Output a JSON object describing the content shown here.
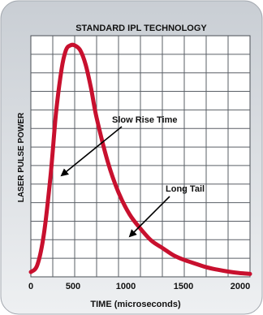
{
  "chart_data": {
    "type": "line",
    "title": "STANDARD IPL TECHNOLOGY",
    "xlabel": "TIME (microseconds)",
    "ylabel": "LASER PULSE POWER",
    "xlim": [
      0,
      2000
    ],
    "x_ticks": [
      0,
      500,
      1000,
      1500,
      2000
    ],
    "x_tick_labels": [
      "0",
      "500",
      "1000",
      "1500",
      "2000"
    ],
    "grid": true,
    "series": [
      {
        "color": "#c8102e",
        "x": [
          0,
          60,
          120,
          180,
          230,
          280,
          320,
          360,
          400,
          450,
          500,
          550,
          600,
          700,
          800,
          900,
          1000,
          1100,
          1200,
          1300,
          1400,
          1500,
          1600,
          1700,
          1800,
          1900,
          2000
        ],
        "y": [
          0.02,
          0.05,
          0.18,
          0.42,
          0.68,
          0.86,
          0.94,
          0.96,
          0.96,
          0.94,
          0.88,
          0.78,
          0.66,
          0.48,
          0.35,
          0.26,
          0.2,
          0.15,
          0.12,
          0.09,
          0.07,
          0.055,
          0.04,
          0.03,
          0.022,
          0.016,
          0.012
        ]
      }
    ],
    "annotations": [
      {
        "text": "Slow Rise Time",
        "x": 300,
        "y": 0.62
      },
      {
        "text": "Long Tail",
        "x": 900,
        "y": 0.18
      }
    ]
  },
  "colors": {
    "background_outer": "#d9dde2",
    "plot_bg": "#ffffff",
    "grid": "#5a5f66",
    "line": "#c8102e"
  }
}
